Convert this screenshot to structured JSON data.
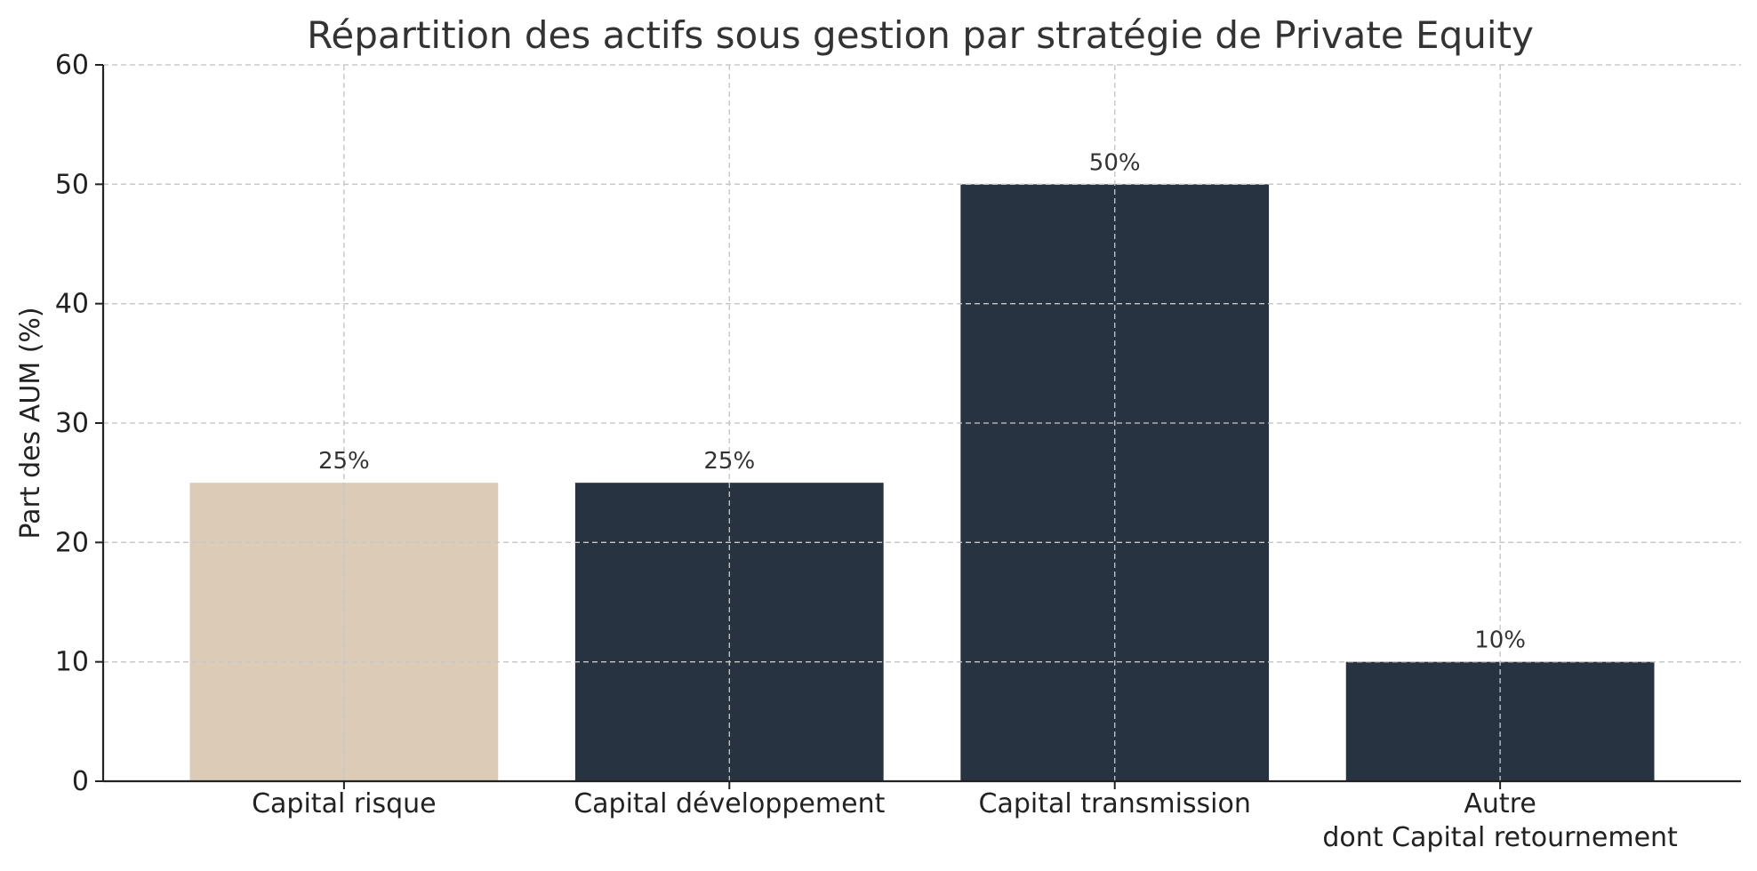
{
  "chart_data": {
    "type": "bar",
    "title": "Répartition des actifs sous gestion par stratégie de Private Equity",
    "xlabel": "",
    "ylabel": "Part des AUM (%)",
    "ylim": [
      0,
      60
    ],
    "yticks": [
      0,
      10,
      20,
      30,
      40,
      50,
      60
    ],
    "grid": true,
    "categories": [
      [
        "Capital risque"
      ],
      [
        "Capital développement"
      ],
      [
        "Capital transmission"
      ],
      [
        "Autre",
        "dont Capital retournement"
      ]
    ],
    "values": [
      25,
      25,
      50,
      10
    ],
    "data_labels": [
      "25%",
      "25%",
      "50%",
      "10%"
    ],
    "colors": [
      "#dccbb7",
      "#283342",
      "#283342",
      "#283342"
    ]
  }
}
